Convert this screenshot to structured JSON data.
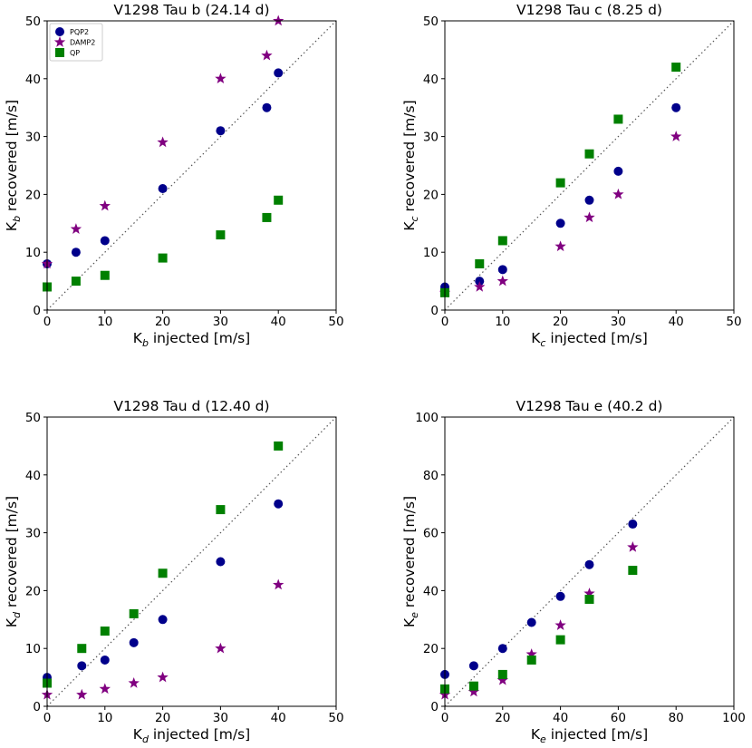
{
  "colors": {
    "PQP2": "#00008b",
    "DAMP2": "#800080",
    "QP": "#008000",
    "diagonal": "#555555"
  },
  "legend": {
    "entries": [
      "PQP2",
      "DAMP2",
      "QP"
    ],
    "location": "top-left"
  },
  "chart_data": [
    {
      "type": "scatter",
      "title": "V1298 Tau b (24.14 d)",
      "xlabel_main": "K",
      "xlabel_sub": "b",
      "xlabel_rest": " injected [m/s]",
      "ylabel_main": "K",
      "ylabel_sub": "b",
      "ylabel_rest": " recovered [m/s]",
      "xlim": [
        0,
        50
      ],
      "ylim": [
        0,
        50
      ],
      "xticks": [
        0,
        10,
        20,
        30,
        40,
        50
      ],
      "yticks": [
        0,
        10,
        20,
        30,
        40,
        50
      ],
      "show_legend": true,
      "series": [
        {
          "name": "PQP2",
          "marker": "circle",
          "points": [
            [
              0,
              8
            ],
            [
              5,
              10
            ],
            [
              10,
              12
            ],
            [
              20,
              21
            ],
            [
              30,
              31
            ],
            [
              38,
              35
            ],
            [
              40,
              41
            ]
          ]
        },
        {
          "name": "DAMP2",
          "marker": "star",
          "points": [
            [
              0,
              8
            ],
            [
              5,
              14
            ],
            [
              10,
              18
            ],
            [
              20,
              29
            ],
            [
              30,
              40
            ],
            [
              38,
              44
            ],
            [
              40,
              50
            ]
          ]
        },
        {
          "name": "QP",
          "marker": "square",
          "points": [
            [
              0,
              4
            ],
            [
              5,
              5
            ],
            [
              10,
              6
            ],
            [
              20,
              9
            ],
            [
              30,
              13
            ],
            [
              38,
              16
            ],
            [
              40,
              19
            ]
          ]
        }
      ]
    },
    {
      "type": "scatter",
      "title": "V1298 Tau c (8.25 d)",
      "xlabel_main": "K",
      "xlabel_sub": "c",
      "xlabel_rest": " injected [m/s]",
      "ylabel_main": "K",
      "ylabel_sub": "c",
      "ylabel_rest": " recovered [m/s]",
      "xlim": [
        0,
        50
      ],
      "ylim": [
        0,
        50
      ],
      "xticks": [
        0,
        10,
        20,
        30,
        40,
        50
      ],
      "yticks": [
        0,
        10,
        20,
        30,
        40,
        50
      ],
      "show_legend": false,
      "series": [
        {
          "name": "PQP2",
          "marker": "circle",
          "points": [
            [
              0,
              4
            ],
            [
              6,
              5
            ],
            [
              10,
              7
            ],
            [
              20,
              15
            ],
            [
              25,
              19
            ],
            [
              30,
              24
            ],
            [
              40,
              35
            ]
          ]
        },
        {
          "name": "DAMP2",
          "marker": "star",
          "points": [
            [
              0,
              3
            ],
            [
              6,
              4
            ],
            [
              10,
              5
            ],
            [
              20,
              11
            ],
            [
              25,
              16
            ],
            [
              30,
              20
            ],
            [
              40,
              30
            ]
          ]
        },
        {
          "name": "QP",
          "marker": "square",
          "points": [
            [
              0,
              3
            ],
            [
              6,
              8
            ],
            [
              10,
              12
            ],
            [
              20,
              22
            ],
            [
              25,
              27
            ],
            [
              30,
              33
            ],
            [
              40,
              42
            ]
          ]
        }
      ]
    },
    {
      "type": "scatter",
      "title": "V1298 Tau d (12.40 d)",
      "xlabel_main": "K",
      "xlabel_sub": "d",
      "xlabel_rest": " injected [m/s]",
      "ylabel_main": "K",
      "ylabel_sub": "d",
      "ylabel_rest": " recovered [m/s]",
      "xlim": [
        0,
        50
      ],
      "ylim": [
        0,
        50
      ],
      "xticks": [
        0,
        10,
        20,
        30,
        40,
        50
      ],
      "yticks": [
        0,
        10,
        20,
        30,
        40,
        50
      ],
      "show_legend": false,
      "series": [
        {
          "name": "PQP2",
          "marker": "circle",
          "points": [
            [
              0,
              5
            ],
            [
              6,
              7
            ],
            [
              10,
              8
            ],
            [
              15,
              11
            ],
            [
              20,
              15
            ],
            [
              30,
              25
            ],
            [
              40,
              35
            ]
          ]
        },
        {
          "name": "DAMP2",
          "marker": "star",
          "points": [
            [
              0,
              2
            ],
            [
              6,
              2
            ],
            [
              10,
              3
            ],
            [
              15,
              4
            ],
            [
              20,
              5
            ],
            [
              30,
              10
            ],
            [
              40,
              21
            ]
          ]
        },
        {
          "name": "QP",
          "marker": "square",
          "points": [
            [
              0,
              4
            ],
            [
              6,
              10
            ],
            [
              10,
              13
            ],
            [
              15,
              16
            ],
            [
              20,
              23
            ],
            [
              30,
              34
            ],
            [
              40,
              45
            ]
          ]
        }
      ]
    },
    {
      "type": "scatter",
      "title": "V1298 Tau e (40.2 d)",
      "xlabel_main": "K",
      "xlabel_sub": "e",
      "xlabel_rest": " injected [m/s]",
      "ylabel_main": "K",
      "ylabel_sub": "e",
      "ylabel_rest": " recovered [m/s]",
      "xlim": [
        0,
        100
      ],
      "ylim": [
        0,
        100
      ],
      "xticks": [
        0,
        20,
        40,
        60,
        80,
        100
      ],
      "yticks": [
        0,
        20,
        40,
        60,
        80,
        100
      ],
      "show_legend": false,
      "series": [
        {
          "name": "PQP2",
          "marker": "circle",
          "points": [
            [
              0,
              11
            ],
            [
              10,
              14
            ],
            [
              20,
              20
            ],
            [
              30,
              29
            ],
            [
              40,
              38
            ],
            [
              50,
              49
            ],
            [
              65,
              63
            ]
          ]
        },
        {
          "name": "DAMP2",
          "marker": "star",
          "points": [
            [
              0,
              4
            ],
            [
              10,
              5
            ],
            [
              20,
              9
            ],
            [
              30,
              18
            ],
            [
              40,
              28
            ],
            [
              50,
              39
            ],
            [
              65,
              55
            ]
          ]
        },
        {
          "name": "QP",
          "marker": "square",
          "points": [
            [
              0,
              6
            ],
            [
              10,
              7
            ],
            [
              20,
              11
            ],
            [
              30,
              16
            ],
            [
              40,
              23
            ],
            [
              50,
              37
            ],
            [
              65,
              47
            ]
          ]
        }
      ]
    }
  ]
}
